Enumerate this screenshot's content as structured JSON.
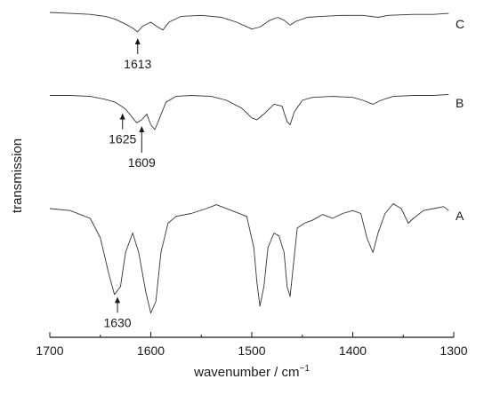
{
  "chart_data": {
    "type": "line",
    "xlabel": "wavenumber / cm",
    "xlabel_sup": "−1",
    "ylabel": "transmission",
    "xlim": [
      1700,
      1300
    ],
    "x_reversed": true,
    "x_ticks": [
      1700,
      1600,
      1500,
      1400,
      1300
    ],
    "y_ticks_shown": false,
    "grid": false,
    "series": [
      {
        "name": "A",
        "points": [
          [
            1700,
            0.1
          ],
          [
            1680,
            0.12
          ],
          [
            1660,
            0.2
          ],
          [
            1650,
            0.4
          ],
          [
            1642,
            0.75
          ],
          [
            1636,
            0.98
          ],
          [
            1630,
            0.9
          ],
          [
            1625,
            0.55
          ],
          [
            1618,
            0.35
          ],
          [
            1612,
            0.55
          ],
          [
            1605,
            0.95
          ],
          [
            1600,
            1.17
          ],
          [
            1595,
            1.05
          ],
          [
            1590,
            0.55
          ],
          [
            1583,
            0.25
          ],
          [
            1575,
            0.18
          ],
          [
            1560,
            0.15
          ],
          [
            1545,
            0.1
          ],
          [
            1535,
            0.06
          ],
          [
            1530,
            0.08
          ],
          [
            1520,
            0.12
          ],
          [
            1505,
            0.18
          ],
          [
            1498,
            0.5
          ],
          [
            1495,
            0.85
          ],
          [
            1492,
            1.1
          ],
          [
            1488,
            0.9
          ],
          [
            1484,
            0.5
          ],
          [
            1478,
            0.35
          ],
          [
            1473,
            0.38
          ],
          [
            1468,
            0.55
          ],
          [
            1465,
            0.9
          ],
          [
            1462,
            1.0
          ],
          [
            1459,
            0.7
          ],
          [
            1455,
            0.3
          ],
          [
            1448,
            0.25
          ],
          [
            1440,
            0.22
          ],
          [
            1430,
            0.16
          ],
          [
            1420,
            0.2
          ],
          [
            1410,
            0.15
          ],
          [
            1400,
            0.12
          ],
          [
            1392,
            0.15
          ],
          [
            1386,
            0.4
          ],
          [
            1380,
            0.55
          ],
          [
            1375,
            0.35
          ],
          [
            1368,
            0.15
          ],
          [
            1360,
            0.05
          ],
          [
            1352,
            0.1
          ],
          [
            1345,
            0.25
          ],
          [
            1340,
            0.2
          ],
          [
            1330,
            0.12
          ],
          [
            1320,
            0.1
          ],
          [
            1310,
            0.08
          ],
          [
            1305,
            0.12
          ]
        ]
      },
      {
        "name": "B",
        "points": [
          [
            1700,
            0.05
          ],
          [
            1680,
            0.05
          ],
          [
            1660,
            0.06
          ],
          [
            1645,
            0.09
          ],
          [
            1635,
            0.12
          ],
          [
            1625,
            0.19
          ],
          [
            1618,
            0.28
          ],
          [
            1614,
            0.33
          ],
          [
            1609,
            0.3
          ],
          [
            1604,
            0.24
          ],
          [
            1600,
            0.35
          ],
          [
            1596,
            0.4
          ],
          [
            1592,
            0.3
          ],
          [
            1585,
            0.12
          ],
          [
            1575,
            0.06
          ],
          [
            1560,
            0.05
          ],
          [
            1540,
            0.06
          ],
          [
            1525,
            0.1
          ],
          [
            1510,
            0.18
          ],
          [
            1500,
            0.28
          ],
          [
            1495,
            0.3
          ],
          [
            1488,
            0.24
          ],
          [
            1478,
            0.14
          ],
          [
            1470,
            0.16
          ],
          [
            1465,
            0.32
          ],
          [
            1462,
            0.35
          ],
          [
            1458,
            0.22
          ],
          [
            1450,
            0.1
          ],
          [
            1440,
            0.07
          ],
          [
            1420,
            0.06
          ],
          [
            1400,
            0.07
          ],
          [
            1390,
            0.1
          ],
          [
            1380,
            0.14
          ],
          [
            1372,
            0.1
          ],
          [
            1360,
            0.06
          ],
          [
            1340,
            0.05
          ],
          [
            1320,
            0.05
          ],
          [
            1305,
            0.04
          ]
        ]
      },
      {
        "name": "C",
        "points": [
          [
            1700,
            0.0
          ],
          [
            1680,
            0.01
          ],
          [
            1660,
            0.02
          ],
          [
            1645,
            0.04
          ],
          [
            1635,
            0.07
          ],
          [
            1625,
            0.12
          ],
          [
            1618,
            0.16
          ],
          [
            1613,
            0.2
          ],
          [
            1608,
            0.14
          ],
          [
            1600,
            0.1
          ],
          [
            1593,
            0.15
          ],
          [
            1588,
            0.18
          ],
          [
            1582,
            0.1
          ],
          [
            1570,
            0.04
          ],
          [
            1550,
            0.03
          ],
          [
            1530,
            0.05
          ],
          [
            1515,
            0.1
          ],
          [
            1500,
            0.17
          ],
          [
            1492,
            0.15
          ],
          [
            1482,
            0.08
          ],
          [
            1474,
            0.05
          ],
          [
            1468,
            0.08
          ],
          [
            1462,
            0.13
          ],
          [
            1456,
            0.09
          ],
          [
            1445,
            0.05
          ],
          [
            1430,
            0.04
          ],
          [
            1410,
            0.03
          ],
          [
            1390,
            0.03
          ],
          [
            1375,
            0.05
          ],
          [
            1365,
            0.03
          ],
          [
            1340,
            0.02
          ],
          [
            1320,
            0.02
          ],
          [
            1305,
            0.01
          ]
        ]
      }
    ],
    "annotations": [
      {
        "series": "A",
        "text": "1630",
        "x": 1633
      },
      {
        "series": "B",
        "text": "1625",
        "x": 1628
      },
      {
        "series": "B",
        "text": "1609",
        "x": 1609
      },
      {
        "series": "C",
        "text": "1613",
        "x": 1613
      }
    ]
  },
  "colors": {
    "line": "#333333",
    "axis": "#1a1a1a",
    "text": "#1a1a1a"
  }
}
